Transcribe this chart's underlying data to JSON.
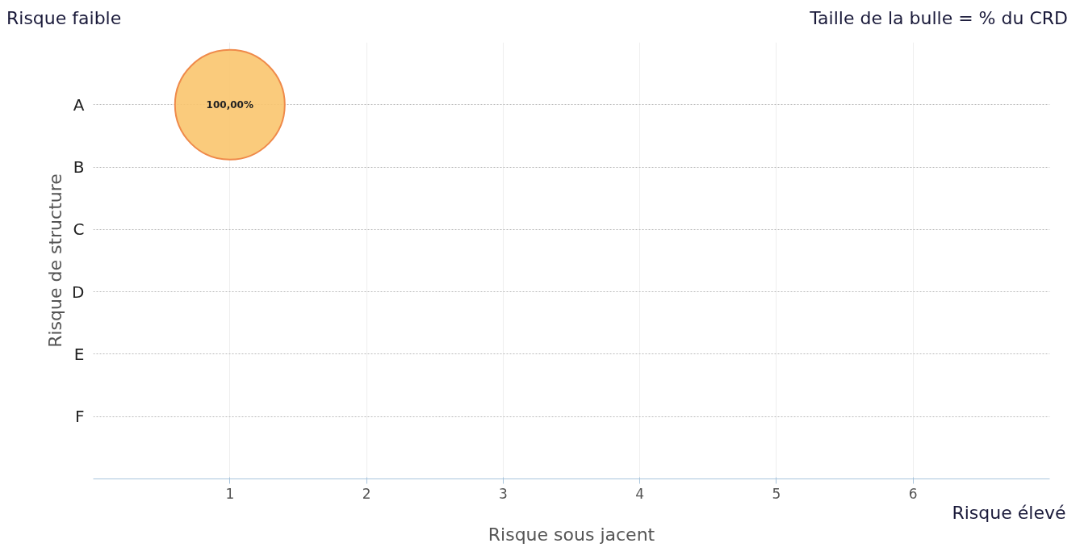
{
  "chart_data": {
    "type": "bubble",
    "orientation": "horizontal",
    "categories": [
      "A",
      "B",
      "C",
      "D",
      "E",
      "F"
    ],
    "values": [
      1,
      null,
      null,
      null,
      null,
      null
    ],
    "sizes": [
      1,
      null,
      null,
      null,
      null,
      null
    ],
    "value_labels": [
      "100,00%",
      null,
      null,
      null,
      null,
      null
    ],
    "color": "#f9c56e",
    "xlabel": "Risque sous jacent",
    "ylabel": "Risque de structure",
    "annotations": [
      "Risque faible",
      "Taille de la bulle = % du CRD",
      "Risque élevé"
    ],
    "xlim": [
      0,
      7
    ],
    "xticks": [
      1,
      2,
      3,
      4,
      5,
      6
    ],
    "grid": true
  }
}
